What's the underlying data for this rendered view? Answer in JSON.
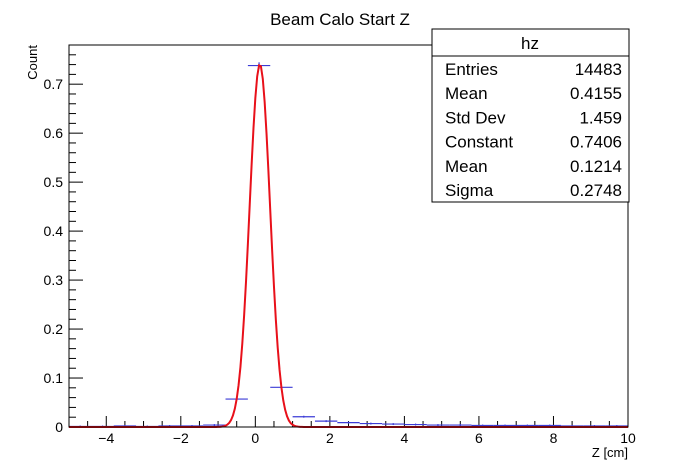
{
  "chart_data": {
    "type": "scatter",
    "title": "Beam Calo Start Z",
    "xlabel": "Z [cm]",
    "ylabel": "Count",
    "xlim": [
      -5,
      10
    ],
    "ylim": [
      0,
      0.78
    ],
    "x_ticks": [
      -4,
      -2,
      0,
      2,
      4,
      6,
      8,
      10
    ],
    "x_tick_labels": [
      "−4",
      "−2",
      "0",
      "2",
      "4",
      "6",
      "8",
      "10"
    ],
    "y_ticks": [
      0,
      0.1,
      0.2,
      0.3,
      0.4,
      0.5,
      0.6,
      0.7
    ],
    "y_tick_labels": [
      "0",
      "0.1",
      "0.2",
      "0.3",
      "0.4",
      "0.5",
      "0.6",
      "0.7"
    ],
    "histogram_color": "#3b3bd6",
    "fit_color": "#e8101a",
    "bin_width": 0.6,
    "bins": [
      {
        "x": -4.7,
        "y": 0.001
      },
      {
        "x": -4.1,
        "y": 0.001
      },
      {
        "x": -3.5,
        "y": 0.002
      },
      {
        "x": -2.9,
        "y": 0.001
      },
      {
        "x": -2.3,
        "y": 0.002
      },
      {
        "x": -1.7,
        "y": 0.002
      },
      {
        "x": -1.1,
        "y": 0.004
      },
      {
        "x": -0.5,
        "y": 0.057
      },
      {
        "x": 0.1,
        "y": 0.738
      },
      {
        "x": 0.7,
        "y": 0.081
      },
      {
        "x": 1.3,
        "y": 0.021
      },
      {
        "x": 1.9,
        "y": 0.012
      },
      {
        "x": 2.5,
        "y": 0.009
      },
      {
        "x": 3.1,
        "y": 0.007
      },
      {
        "x": 3.7,
        "y": 0.006
      },
      {
        "x": 4.3,
        "y": 0.005
      },
      {
        "x": 4.9,
        "y": 0.004
      },
      {
        "x": 5.5,
        "y": 0.004
      },
      {
        "x": 6.1,
        "y": 0.003
      },
      {
        "x": 6.7,
        "y": 0.003
      },
      {
        "x": 7.3,
        "y": 0.003
      },
      {
        "x": 7.9,
        "y": 0.003
      },
      {
        "x": 8.5,
        "y": 0.002
      },
      {
        "x": 9.1,
        "y": 0.002
      },
      {
        "x": 9.7,
        "y": 0.002
      }
    ],
    "fit": {
      "constant": 0.7406,
      "mean": 0.1214,
      "sigma": 0.2748
    }
  },
  "stats_box": {
    "header": "hz",
    "rows": [
      {
        "label": "Entries",
        "value": "14483"
      },
      {
        "label": "Mean",
        "value": "0.4155"
      },
      {
        "label": "Std Dev",
        "value": "1.459"
      },
      {
        "label": "Constant",
        "value": "0.7406"
      },
      {
        "label": "Mean",
        "value": "0.1214"
      },
      {
        "label": "Sigma",
        "value": "0.2748"
      }
    ]
  }
}
